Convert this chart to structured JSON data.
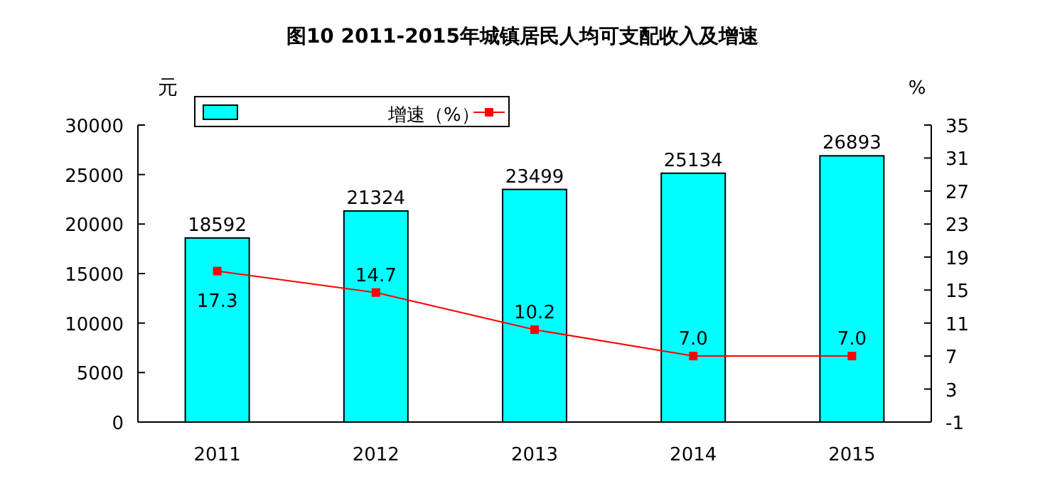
{
  "chart_data": {
    "type": "bar",
    "title": "图10 2011-2015年城镇居民人均可支配收入及增速",
    "ylabel": "元",
    "y2label": "%",
    "categories": [
      "2011",
      "2012",
      "2013",
      "2014",
      "2015"
    ],
    "series": [
      {
        "color": "#00ffff",
        "values": [
          18592,
          21324,
          23499,
          25134,
          26893
        ],
        "value_labels": [
          "18592",
          "21324",
          "23499",
          "25134",
          "26893"
        ]
      },
      {
        "type": "line",
        "name": "增速（%）",
        "axis": "y2",
        "color": "#ff0000",
        "marker": "square",
        "values": [
          17.3,
          14.7,
          10.2,
          7.0,
          7.0
        ],
        "value_labels": [
          "17.3",
          "14.7",
          "10.2",
          "7.0",
          "7.0"
        ]
      }
    ],
    "ylim": [
      0,
      30000
    ],
    "yticks": [
      0,
      5000,
      10000,
      15000,
      20000,
      25000,
      30000
    ],
    "y2lim": [
      -1,
      35
    ],
    "y2ticks": [
      -1,
      3,
      7,
      11,
      15,
      19,
      23,
      27,
      31,
      35
    ],
    "grid": false,
    "legend": "top left"
  }
}
